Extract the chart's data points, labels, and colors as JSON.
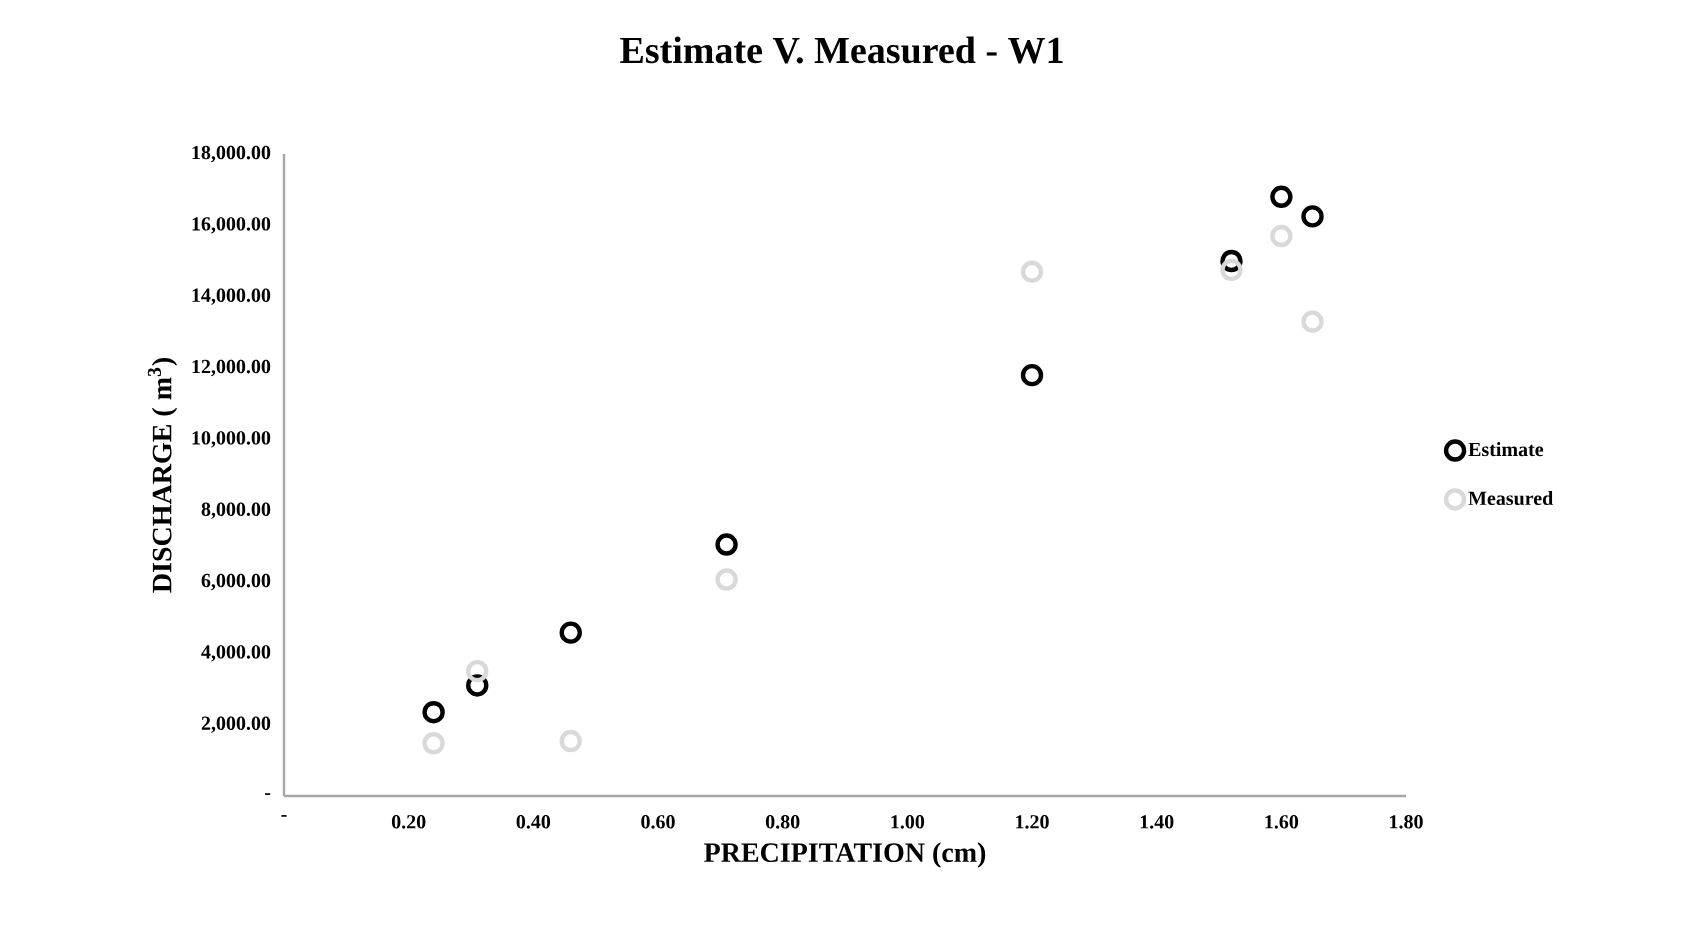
{
  "chart_data": {
    "type": "scatter",
    "title": "Estimate V. Measured - W1",
    "xlabel": "PRECIPITATION (cm)",
    "ylabel": "DISCHARGE ( m$^{3}$)",
    "xlim": [
      0,
      1.8
    ],
    "ylim": [
      0,
      18000
    ],
    "xticks": [
      {
        "value": 0,
        "label": "-"
      },
      {
        "value": 0.2,
        "label": "0.20"
      },
      {
        "value": 0.4,
        "label": "0.40"
      },
      {
        "value": 0.6,
        "label": "0.60"
      },
      {
        "value": 0.8,
        "label": "0.80"
      },
      {
        "value": 1.0,
        "label": "1.00"
      },
      {
        "value": 1.2,
        "label": "1.20"
      },
      {
        "value": 1.4,
        "label": "1.40"
      },
      {
        "value": 1.6,
        "label": "1.60"
      },
      {
        "value": 1.8,
        "label": "1.80"
      }
    ],
    "yticks": [
      {
        "value": 0,
        "label": "-"
      },
      {
        "value": 2000,
        "label": "2,000.00"
      },
      {
        "value": 4000,
        "label": "4,000.00"
      },
      {
        "value": 6000,
        "label": "6,000.00"
      },
      {
        "value": 8000,
        "label": "8,000.00"
      },
      {
        "value": 10000,
        "label": "10,000.00"
      },
      {
        "value": 12000,
        "label": "12,000.00"
      },
      {
        "value": 14000,
        "label": "14,000.00"
      },
      {
        "value": 16000,
        "label": "16,000.00"
      },
      {
        "value": 18000,
        "label": "18,000.00"
      }
    ],
    "marker": "circle",
    "legend": "right",
    "series": [
      {
        "name": "Estimate",
        "color": "#000000",
        "x": [
          0.24,
          0.31,
          0.46,
          0.71,
          1.2,
          1.52,
          1.6,
          1.65
        ],
        "values": [
          2350,
          3100,
          4580,
          7050,
          11800,
          15000,
          16800,
          16250
        ]
      },
      {
        "name": "Measured",
        "color": "#d9d9d9",
        "x": [
          0.24,
          0.31,
          0.46,
          0.71,
          1.2,
          1.52,
          1.6,
          1.65
        ],
        "values": [
          1480,
          3500,
          1540,
          6070,
          14700,
          14750,
          15700,
          13300
        ]
      }
    ]
  }
}
